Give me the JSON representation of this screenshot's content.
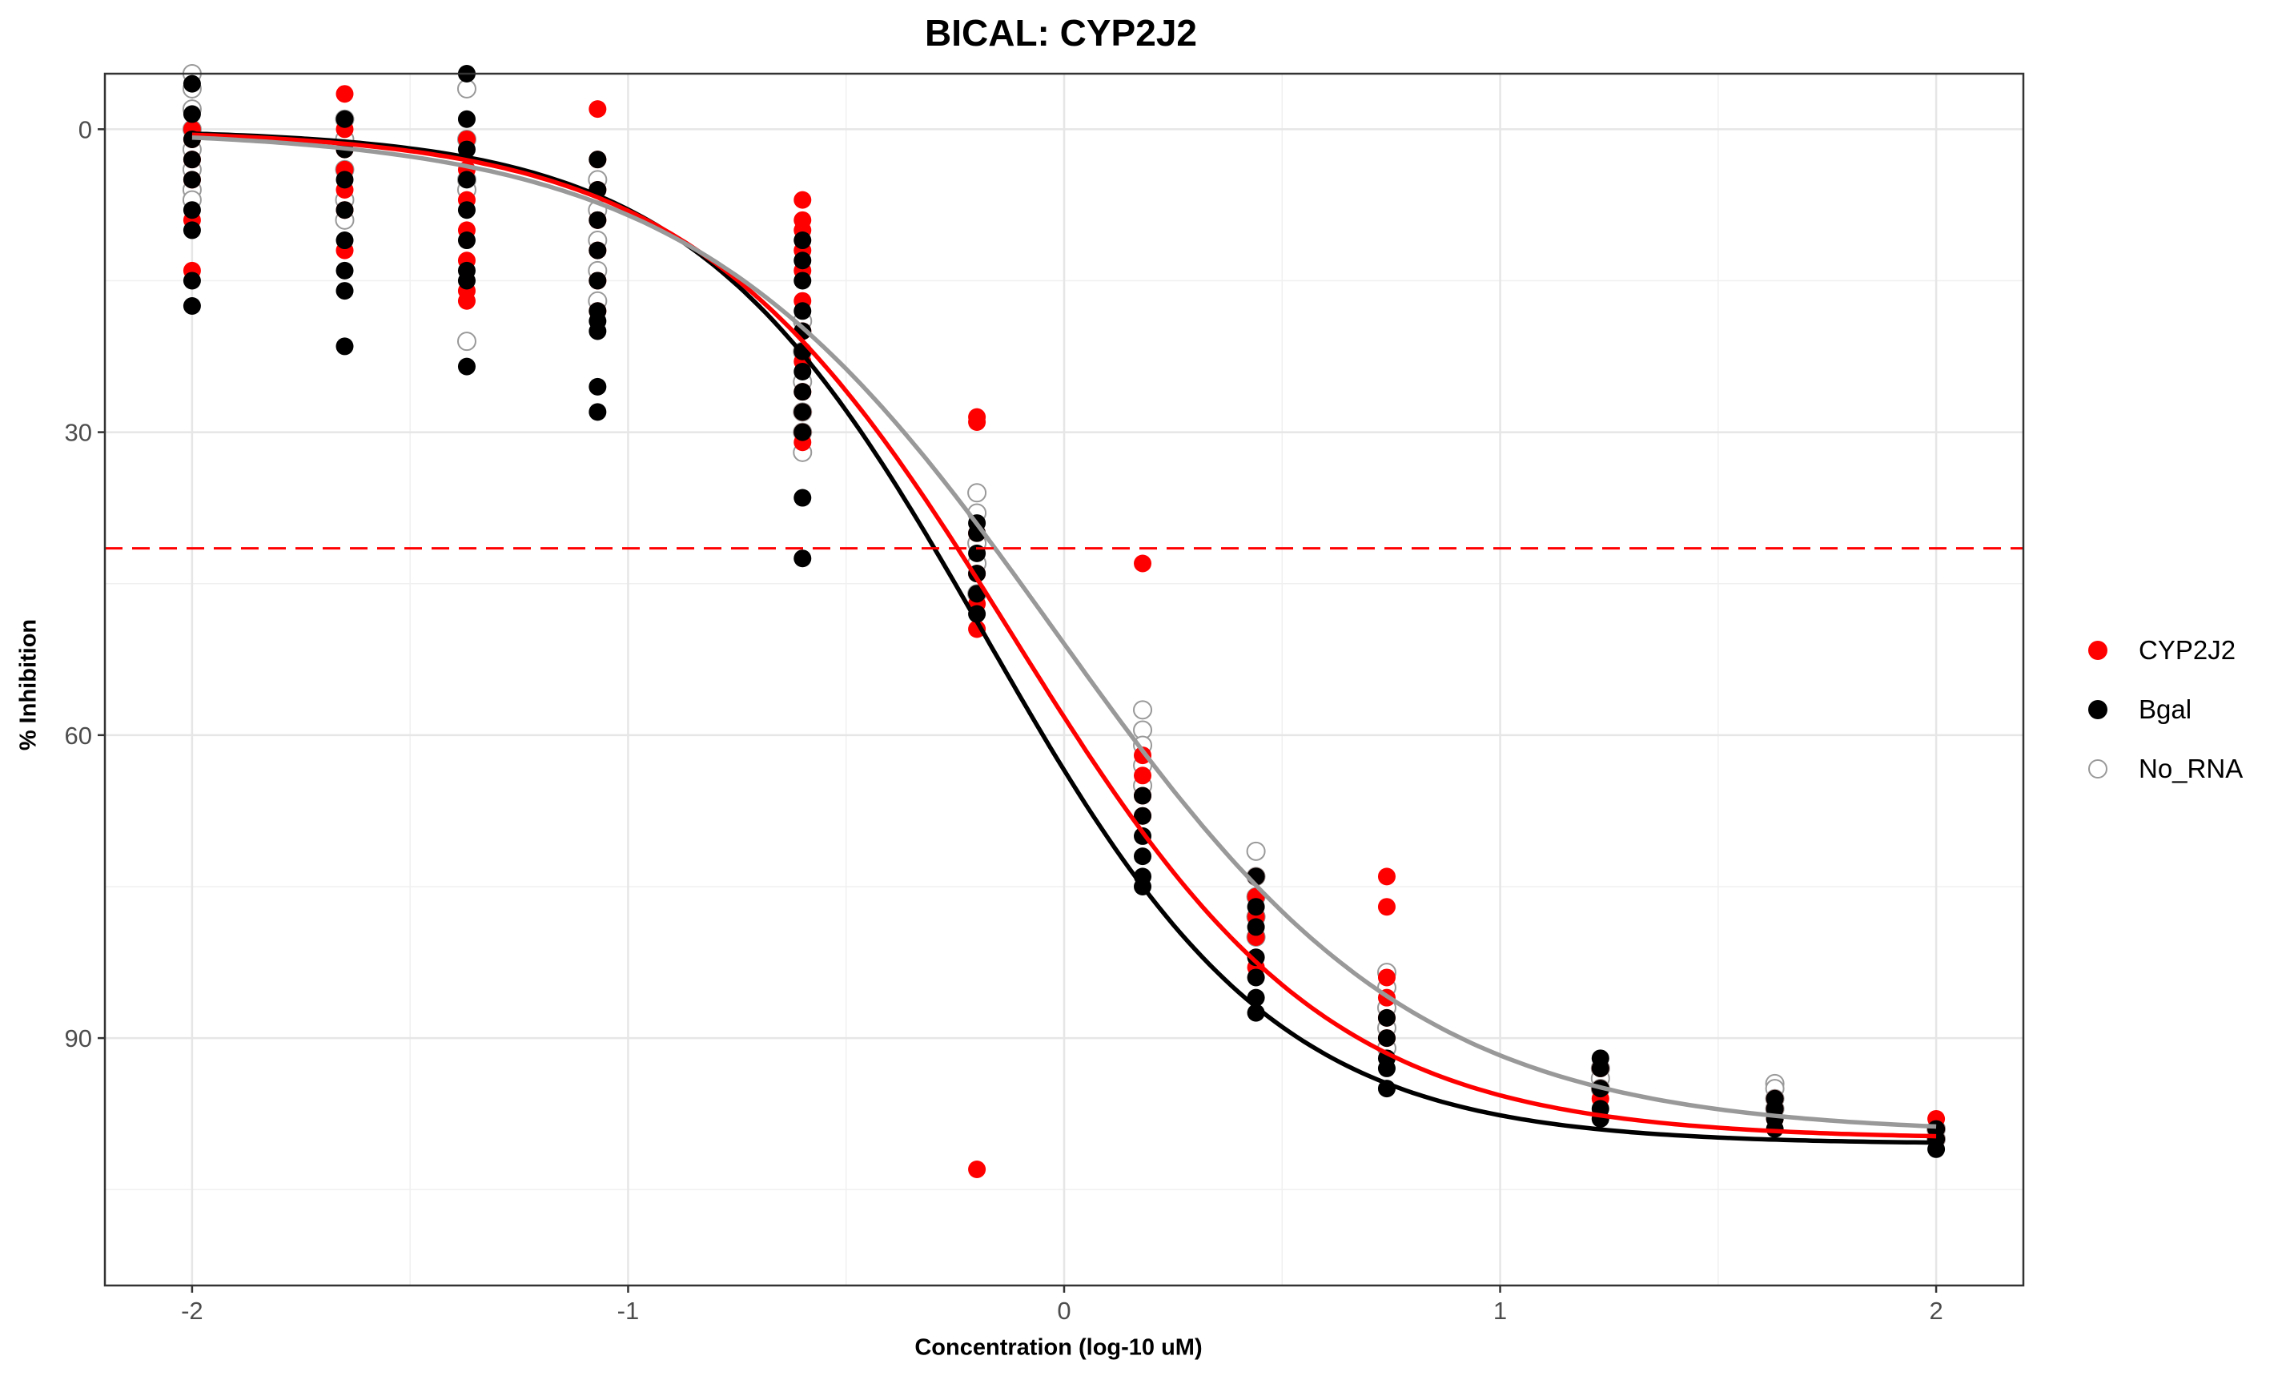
{
  "chart_data": {
    "type": "scatter",
    "title": "BICAL: CYP2J2",
    "xlabel": "Concentration (log-10 uM)",
    "ylabel": "% Inhibition",
    "xlim": [
      -2.2,
      2.2
    ],
    "ylim": [
      -5.5,
      114.5
    ],
    "y_reversed": true,
    "x_ticks": [
      -2,
      -1,
      0,
      1,
      2
    ],
    "x_tick_labels": [
      "-2",
      "-1",
      "0",
      "1",
      "2"
    ],
    "y_ticks": [
      0,
      30,
      60,
      90
    ],
    "y_tick_labels": [
      "0",
      "30",
      "60",
      "90"
    ],
    "grid": true,
    "legend_position": "right",
    "reference_line": {
      "y": 41.5,
      "color": "#ff0000",
      "style": "dashed"
    },
    "concentrations": [
      -2.0,
      -1.65,
      -1.37,
      -1.07,
      -0.6,
      -0.2,
      0.18,
      0.44,
      0.74,
      1.23,
      1.63,
      2.0
    ],
    "series": [
      {
        "name": "CYP2J2",
        "color": "#ff0000",
        "marker": "filled",
        "curve": {
          "bottom": 0,
          "top": 100,
          "log_ic50": -0.12,
          "hill": 1.2
        },
        "points": [
          [
            -2.0,
            0
          ],
          [
            -2.0,
            1
          ],
          [
            -2.0,
            3
          ],
          [
            -2.0,
            5
          ],
          [
            -2.0,
            9
          ],
          [
            -2.0,
            14
          ],
          [
            -1.65,
            -3.5
          ],
          [
            -1.65,
            0
          ],
          [
            -1.65,
            2
          ],
          [
            -1.65,
            4
          ],
          [
            -1.65,
            6
          ],
          [
            -1.65,
            8
          ],
          [
            -1.65,
            12
          ],
          [
            -1.37,
            1
          ],
          [
            -1.37,
            4
          ],
          [
            -1.37,
            7
          ],
          [
            -1.37,
            10
          ],
          [
            -1.37,
            13
          ],
          [
            -1.37,
            16
          ],
          [
            -1.37,
            17
          ],
          [
            -1.07,
            -2
          ],
          [
            -1.07,
            3
          ],
          [
            -1.07,
            6
          ],
          [
            -1.07,
            9
          ],
          [
            -1.07,
            12
          ],
          [
            -1.07,
            15
          ],
          [
            -1.07,
            18
          ],
          [
            -0.6,
            7
          ],
          [
            -0.6,
            9
          ],
          [
            -0.6,
            10
          ],
          [
            -0.6,
            12
          ],
          [
            -0.6,
            14
          ],
          [
            -0.6,
            17
          ],
          [
            -0.6,
            20
          ],
          [
            -0.6,
            23
          ],
          [
            -0.6,
            26
          ],
          [
            -0.6,
            28
          ],
          [
            -0.6,
            30
          ],
          [
            -0.6,
            31
          ],
          [
            -0.2,
            28.5
          ],
          [
            -0.2,
            29
          ],
          [
            -0.2,
            40
          ],
          [
            -0.2,
            44
          ],
          [
            -0.2,
            47
          ],
          [
            -0.2,
            49.5
          ],
          [
            -0.2,
            103
          ],
          [
            0.18,
            43
          ],
          [
            0.18,
            62
          ],
          [
            0.18,
            64
          ],
          [
            0.18,
            66
          ],
          [
            0.18,
            68
          ],
          [
            0.44,
            74
          ],
          [
            0.44,
            76
          ],
          [
            0.44,
            78
          ],
          [
            0.44,
            80
          ],
          [
            0.44,
            83
          ],
          [
            0.74,
            74
          ],
          [
            0.74,
            77
          ],
          [
            0.74,
            84
          ],
          [
            0.74,
            86
          ],
          [
            0.74,
            88
          ],
          [
            0.74,
            90
          ],
          [
            1.23,
            93
          ],
          [
            1.23,
            95
          ],
          [
            1.23,
            96
          ],
          [
            1.63,
            96
          ],
          [
            1.63,
            97
          ],
          [
            1.63,
            98
          ],
          [
            2.0,
            98
          ],
          [
            2.0,
            99
          ],
          [
            2.0,
            100
          ]
        ]
      },
      {
        "name": "Bgal",
        "color": "#000000",
        "marker": "filled",
        "curve": {
          "bottom": 0,
          "top": 100.5,
          "log_ic50": -0.18,
          "hill": 1.3
        },
        "points": [
          [
            -2.0,
            -4.5
          ],
          [
            -2.0,
            -1.5
          ],
          [
            -2.0,
            1
          ],
          [
            -2.0,
            3
          ],
          [
            -2.0,
            5
          ],
          [
            -2.0,
            8
          ],
          [
            -2.0,
            10
          ],
          [
            -2.0,
            15
          ],
          [
            -2.0,
            17.5
          ],
          [
            -1.65,
            -1
          ],
          [
            -1.65,
            2
          ],
          [
            -1.65,
            5
          ],
          [
            -1.65,
            8
          ],
          [
            -1.65,
            11
          ],
          [
            -1.65,
            14
          ],
          [
            -1.65,
            16
          ],
          [
            -1.65,
            21.5
          ],
          [
            -1.37,
            -5.5
          ],
          [
            -1.37,
            -1
          ],
          [
            -1.37,
            2
          ],
          [
            -1.37,
            5
          ],
          [
            -1.37,
            8
          ],
          [
            -1.37,
            11
          ],
          [
            -1.37,
            14
          ],
          [
            -1.37,
            15
          ],
          [
            -1.37,
            23.5
          ],
          [
            -1.07,
            3
          ],
          [
            -1.07,
            6
          ],
          [
            -1.07,
            9
          ],
          [
            -1.07,
            12
          ],
          [
            -1.07,
            15
          ],
          [
            -1.07,
            18
          ],
          [
            -1.07,
            19
          ],
          [
            -1.07,
            20
          ],
          [
            -1.07,
            25.5
          ],
          [
            -1.07,
            28
          ],
          [
            -0.6,
            11
          ],
          [
            -0.6,
            13
          ],
          [
            -0.6,
            15
          ],
          [
            -0.6,
            18
          ],
          [
            -0.6,
            20
          ],
          [
            -0.6,
            22
          ],
          [
            -0.6,
            24
          ],
          [
            -0.6,
            26
          ],
          [
            -0.6,
            28
          ],
          [
            -0.6,
            30
          ],
          [
            -0.6,
            36.5
          ],
          [
            -0.6,
            42.5
          ],
          [
            -0.2,
            39
          ],
          [
            -0.2,
            40
          ],
          [
            -0.2,
            42
          ],
          [
            -0.2,
            44
          ],
          [
            -0.2,
            46
          ],
          [
            -0.2,
            48
          ],
          [
            0.18,
            66
          ],
          [
            0.18,
            68
          ],
          [
            0.18,
            70
          ],
          [
            0.18,
            72
          ],
          [
            0.18,
            74
          ],
          [
            0.18,
            75
          ],
          [
            0.44,
            74
          ],
          [
            0.44,
            77
          ],
          [
            0.44,
            79
          ],
          [
            0.44,
            82
          ],
          [
            0.44,
            84
          ],
          [
            0.44,
            86
          ],
          [
            0.44,
            87.5
          ],
          [
            0.74,
            88
          ],
          [
            0.74,
            90
          ],
          [
            0.74,
            92
          ],
          [
            0.74,
            93
          ],
          [
            0.74,
            95
          ],
          [
            1.23,
            92
          ],
          [
            1.23,
            93
          ],
          [
            1.23,
            95
          ],
          [
            1.23,
            97
          ],
          [
            1.23,
            98
          ],
          [
            1.63,
            96
          ],
          [
            1.63,
            97
          ],
          [
            1.63,
            98
          ],
          [
            1.63,
            99
          ],
          [
            2.0,
            99
          ],
          [
            2.0,
            100
          ],
          [
            2.0,
            101
          ]
        ]
      },
      {
        "name": "No_RNA",
        "color": "#999999",
        "marker": "hollow",
        "curve": {
          "bottom": 0,
          "top": 99.5,
          "log_ic50": -0.02,
          "hill": 1.05
        },
        "points": [
          [
            -2.0,
            -5.5
          ],
          [
            -2.0,
            -4
          ],
          [
            -2.0,
            -2
          ],
          [
            -2.0,
            0
          ],
          [
            -2.0,
            2
          ],
          [
            -2.0,
            4
          ],
          [
            -2.0,
            6
          ],
          [
            -2.0,
            7
          ],
          [
            -1.65,
            -1
          ],
          [
            -1.65,
            1
          ],
          [
            -1.65,
            4
          ],
          [
            -1.65,
            7
          ],
          [
            -1.65,
            9
          ],
          [
            -1.37,
            -4
          ],
          [
            -1.37,
            1
          ],
          [
            -1.37,
            5
          ],
          [
            -1.37,
            6
          ],
          [
            -1.37,
            21
          ],
          [
            -1.07,
            5
          ],
          [
            -1.07,
            8
          ],
          [
            -1.07,
            11
          ],
          [
            -1.07,
            14
          ],
          [
            -1.07,
            17
          ],
          [
            -0.6,
            19
          ],
          [
            -0.6,
            22
          ],
          [
            -0.6,
            25
          ],
          [
            -0.6,
            28
          ],
          [
            -0.6,
            30
          ],
          [
            -0.6,
            32
          ],
          [
            -0.2,
            36
          ],
          [
            -0.2,
            38
          ],
          [
            -0.2,
            41
          ],
          [
            -0.2,
            43
          ],
          [
            -0.2,
            46
          ],
          [
            0.18,
            57.5
          ],
          [
            0.18,
            59.5
          ],
          [
            0.18,
            61
          ],
          [
            0.18,
            63
          ],
          [
            0.18,
            65
          ],
          [
            0.44,
            71.5
          ],
          [
            0.44,
            74
          ],
          [
            0.44,
            76
          ],
          [
            0.44,
            78
          ],
          [
            0.44,
            80
          ],
          [
            0.74,
            83.5
          ],
          [
            0.74,
            85
          ],
          [
            0.74,
            87
          ],
          [
            0.74,
            89
          ],
          [
            0.74,
            91
          ],
          [
            1.23,
            93
          ],
          [
            1.23,
            94
          ],
          [
            1.23,
            95
          ],
          [
            1.63,
            94.5
          ],
          [
            1.63,
            95
          ],
          [
            1.63,
            96
          ],
          [
            1.63,
            97
          ],
          [
            2.0,
            99
          ],
          [
            2.0,
            100
          ]
        ]
      }
    ]
  }
}
